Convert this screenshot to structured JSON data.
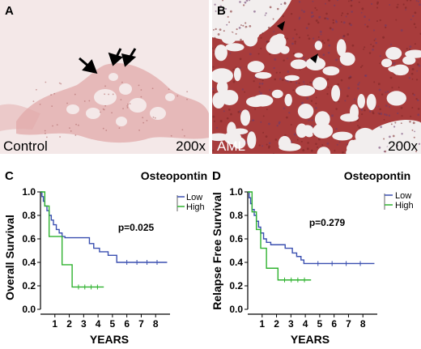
{
  "micrographs": {
    "a": {
      "letter": "A",
      "label": "Control",
      "magnification": "200x",
      "tissue_color": "#e2a9a9",
      "background": "#f4e8e8"
    },
    "b": {
      "letter": "B",
      "label": "AML",
      "magnification": "200x",
      "tissue_color": "#a83c3c",
      "background": "#f2eeee"
    }
  },
  "colors": {
    "low": "#3a4fb0",
    "high": "#2fb22f",
    "axis": "#000000"
  },
  "chart_data": [
    {
      "type": "line",
      "panel": "C",
      "title": "Osteopontin",
      "xlabel": "YEARS",
      "ylabel": "Overall Survival",
      "annotation": "p=0.025",
      "xlim": [
        0,
        9
      ],
      "ylim": [
        0,
        1.0
      ],
      "xticks": [
        "1",
        "2",
        "3",
        "4",
        "5",
        "6",
        "7",
        "8"
      ],
      "yticks": [
        "0.0",
        "0.2",
        "0.4",
        "0.6",
        "0.8",
        "1.0"
      ],
      "legend": {
        "placement": "top-right"
      },
      "series": [
        {
          "name": "Low",
          "x": [
            0,
            0.1,
            0.2,
            0.3,
            0.45,
            0.6,
            0.75,
            0.9,
            1.1,
            1.3,
            1.5,
            1.7,
            3.4,
            3.7,
            4.1,
            4.7,
            5.3,
            8.8
          ],
          "y": [
            1.0,
            0.96,
            0.92,
            0.88,
            0.84,
            0.8,
            0.76,
            0.72,
            0.68,
            0.65,
            0.62,
            0.61,
            0.56,
            0.52,
            0.49,
            0.46,
            0.4,
            0.4
          ]
        },
        {
          "name": "High",
          "x": [
            0,
            0.3,
            0.6,
            1.5,
            2.2,
            4.4
          ],
          "y": [
            1.0,
            0.88,
            0.62,
            0.38,
            0.19,
            0.19
          ]
        }
      ]
    },
    {
      "type": "line",
      "panel": "D",
      "title": "Osteopontin",
      "xlabel": "YEARS",
      "ylabel": "Relapse Free Survival",
      "annotation": "p=0.279",
      "xlim": [
        0,
        9
      ],
      "ylim": [
        0,
        1.0
      ],
      "xticks": [
        "1",
        "2",
        "3",
        "4",
        "5",
        "6",
        "7",
        "8"
      ],
      "yticks": [
        "0.0",
        "0.2",
        "0.4",
        "0.6",
        "0.8",
        "1.0"
      ],
      "legend": {
        "placement": "top-right"
      },
      "series": [
        {
          "name": "Low",
          "x": [
            0,
            0.1,
            0.2,
            0.3,
            0.45,
            0.6,
            0.75,
            0.9,
            1.1,
            1.3,
            1.6,
            2.6,
            3.1,
            3.4,
            3.7,
            3.9,
            8.8
          ],
          "y": [
            1.0,
            0.95,
            0.9,
            0.85,
            0.8,
            0.75,
            0.7,
            0.65,
            0.6,
            0.57,
            0.55,
            0.52,
            0.48,
            0.45,
            0.42,
            0.39,
            0.39
          ]
        },
        {
          "name": "High",
          "x": [
            0,
            0.3,
            0.6,
            0.9,
            1.3,
            2.1,
            4.4
          ],
          "y": [
            1.0,
            0.83,
            0.68,
            0.52,
            0.35,
            0.25,
            0.25
          ]
        }
      ]
    }
  ]
}
